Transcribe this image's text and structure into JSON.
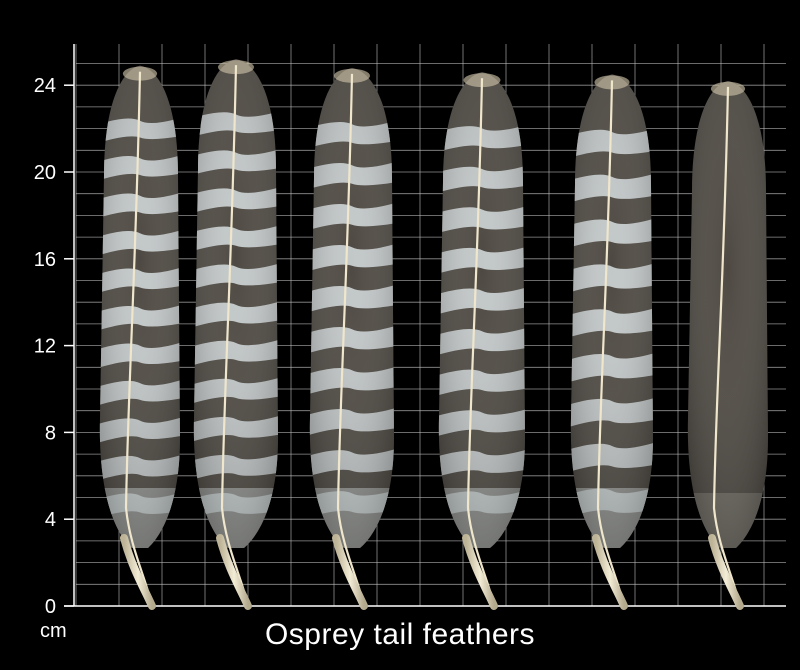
{
  "image": {
    "title": "Osprey tail feathers",
    "unit": "cm",
    "axis": {
      "ticks": [
        "0",
        "4",
        "8",
        "12",
        "16",
        "20",
        "24"
      ],
      "tick_values": [
        0,
        4,
        8,
        12,
        16,
        20,
        24
      ],
      "max_value": 25
    },
    "feathers": [
      {
        "tip_cm": 24.9,
        "band_count": 11,
        "barred": true
      },
      {
        "tip_cm": 25.2,
        "band_count": 11,
        "barred": true
      },
      {
        "tip_cm": 24.8,
        "band_count": 10,
        "barred": true
      },
      {
        "tip_cm": 24.6,
        "band_count": 10,
        "barred": true
      },
      {
        "tip_cm": 24.5,
        "band_count": 9,
        "barred": true
      },
      {
        "tip_cm": 24.2,
        "band_count": 0,
        "barred": false
      }
    ],
    "colors": {
      "background": "#000000",
      "grid": "#bfbfbf",
      "feather_dark": "#4d4841",
      "feather_light": "#c8cfd0",
      "shaft": "#efe6cc"
    }
  }
}
